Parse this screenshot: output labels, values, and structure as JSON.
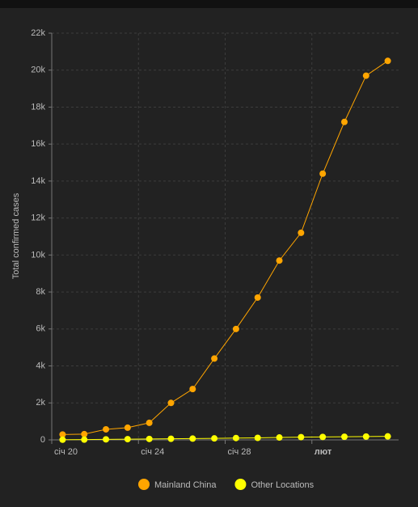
{
  "chart_data": {
    "type": "line",
    "y_label": "Total confirmed cases",
    "categories": [
      "січ 20",
      null,
      null,
      null,
      "січ 24",
      null,
      null,
      null,
      "січ 28",
      null,
      null,
      null,
      "лют",
      null,
      null,
      null
    ],
    "series": [
      {
        "name": "Mainland China",
        "color": "#ffa500",
        "values": [
          290,
          310,
          571,
          660,
          923,
          2000,
          2750,
          4400,
          6000,
          7700,
          9700,
          11200,
          14400,
          17200,
          19700,
          20500
        ]
      },
      {
        "name": "Other Locations",
        "color": "#ffff00",
        "values": [
          10,
          15,
          30,
          40,
          50,
          60,
          70,
          80,
          100,
          110,
          130,
          150,
          160,
          170,
          180,
          190
        ]
      }
    ],
    "ylim": [
      0,
      22000
    ],
    "yticks": [
      0,
      {
        "value": 2000,
        "label": "2k"
      },
      {
        "value": 4000,
        "label": "4k"
      },
      {
        "value": 6000,
        "label": "6k"
      },
      {
        "value": 8000,
        "label": "8k"
      },
      {
        "value": 10000,
        "label": "10k"
      },
      {
        "value": 12000,
        "label": "12k"
      },
      {
        "value": 14000,
        "label": "14k"
      },
      {
        "value": 16000,
        "label": "16k"
      },
      {
        "value": 18000,
        "label": "18k"
      },
      {
        "value": 20000,
        "label": "20k"
      },
      {
        "value": 22000,
        "label": "22k"
      }
    ],
    "grid": true,
    "legend": "bottom"
  }
}
